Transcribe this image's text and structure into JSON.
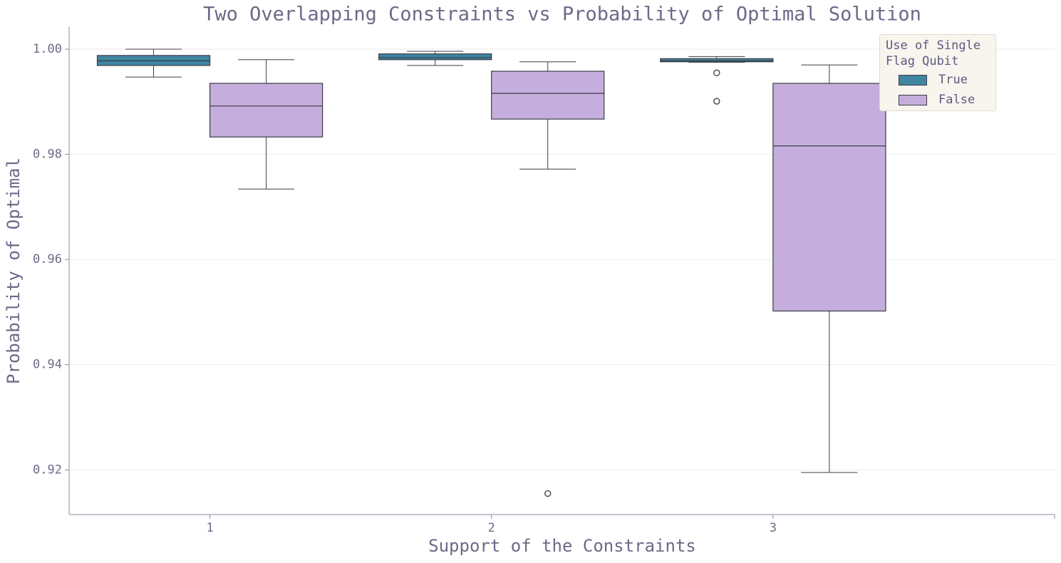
{
  "chart_data": {
    "type": "box",
    "title": "Two Overlapping Constraints vs Probability of Optimal Solution",
    "x_label": "Support of the Constraints",
    "y_label": "Probability of Optimal",
    "legend_title": "Use of Single\nFlag Qubit",
    "legend": "upper right",
    "grid": true,
    "categories": [
      "1",
      "2",
      "3",
      null
    ],
    "xlim": [
      -0.5,
      3
    ],
    "ylim": [
      0.9115,
      1.0042
    ],
    "yticks": [
      {
        "value": 1,
        "label": "1.00"
      },
      0.98,
      0.96,
      0.94,
      0.92
    ],
    "series": [
      {
        "name": "True",
        "color": "#3f86a2",
        "boxes": [
          {
            "whislo": 0.9947,
            "q1": 0.9969,
            "med": 0.9978,
            "q3": 0.9988,
            "whishi": 1.0,
            "fliers": []
          },
          {
            "whislo": 0.9969,
            "q1": 0.998,
            "med": 0.9984,
            "q3": 0.9991,
            "whishi": 0.9996,
            "fliers": []
          },
          {
            "whislo": 0.9975,
            "q1": 0.9976,
            "med": 0.9978,
            "q3": 0.9982,
            "whishi": 0.9986,
            "fliers": [
              0.9955,
              0.9901
            ]
          }
        ]
      },
      {
        "name": "False",
        "color": "#c5aedd",
        "boxes": [
          {
            "whislo": 0.9734,
            "q1": 0.9833,
            "med": 0.9892,
            "q3": 0.9935,
            "whishi": 0.998,
            "fliers": []
          },
          {
            "whislo": 0.9772,
            "q1": 0.9867,
            "med": 0.9916,
            "q3": 0.9958,
            "whishi": 0.9976,
            "fliers": [
              0.9155
            ]
          },
          {
            "whislo": 0.9195,
            "q1": 0.9502,
            "med": 0.9816,
            "q3": 0.9935,
            "whishi": 0.997,
            "fliers": []
          }
        ]
      }
    ]
  }
}
